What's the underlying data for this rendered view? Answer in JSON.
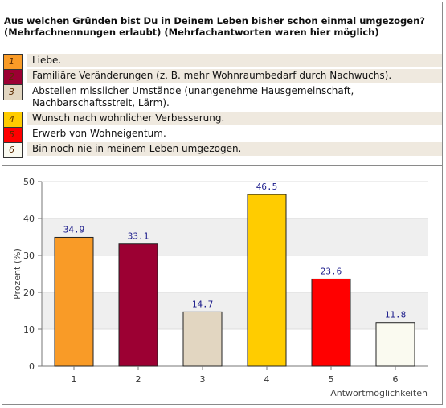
{
  "question": "Aus welchen Gründen bist Du in Deinem Leben bisher schon einmal umgezogen? (Mehrfachnennungen erlaubt) (Mehrfachantworten waren hier möglich)",
  "legend": [
    {
      "num": "1",
      "label": "Liebe.",
      "color": "#f99b27"
    },
    {
      "num": "2",
      "label": "Familiäre Veränderungen (z. B. mehr Wohnraumbedarf durch Nachwuchs).",
      "color": "#9c0033"
    },
    {
      "num": "3",
      "label": "Abstellen misslicher Umstände (unangenehme Hausgemeinschaft, Nachbarschaftsstreit, Lärm).",
      "color": "#e2d6c1"
    },
    {
      "num": "4",
      "label": "Wunsch nach wohnlicher Verbesserung.",
      "color": "#ffcc00"
    },
    {
      "num": "5",
      "label": "Erwerb von Wohneigentum.",
      "color": "#ff0000"
    },
    {
      "num": "6",
      "label": "Bin noch nie in meinem Leben umgezogen.",
      "color": "#fafaf0"
    }
  ],
  "chart_data": {
    "type": "bar",
    "categories": [
      "1",
      "2",
      "3",
      "4",
      "5",
      "6"
    ],
    "values": [
      34.9,
      33.1,
      14.7,
      46.5,
      23.6,
      11.8
    ],
    "value_labels": [
      "34.9",
      "33.1",
      "14.7",
      "46.5",
      "23.6",
      "11.8"
    ],
    "colors": [
      "#f99b27",
      "#9c0033",
      "#e2d6c1",
      "#ffcc00",
      "#ff0000",
      "#fafaf0"
    ],
    "ylabel": "Prozent (%)",
    "xlabel": "Antwortmöglichkeiten",
    "ylim": [
      0,
      50
    ],
    "yticks": [
      "0",
      "10",
      "20",
      "30",
      "40",
      "50"
    ],
    "grid": true
  }
}
